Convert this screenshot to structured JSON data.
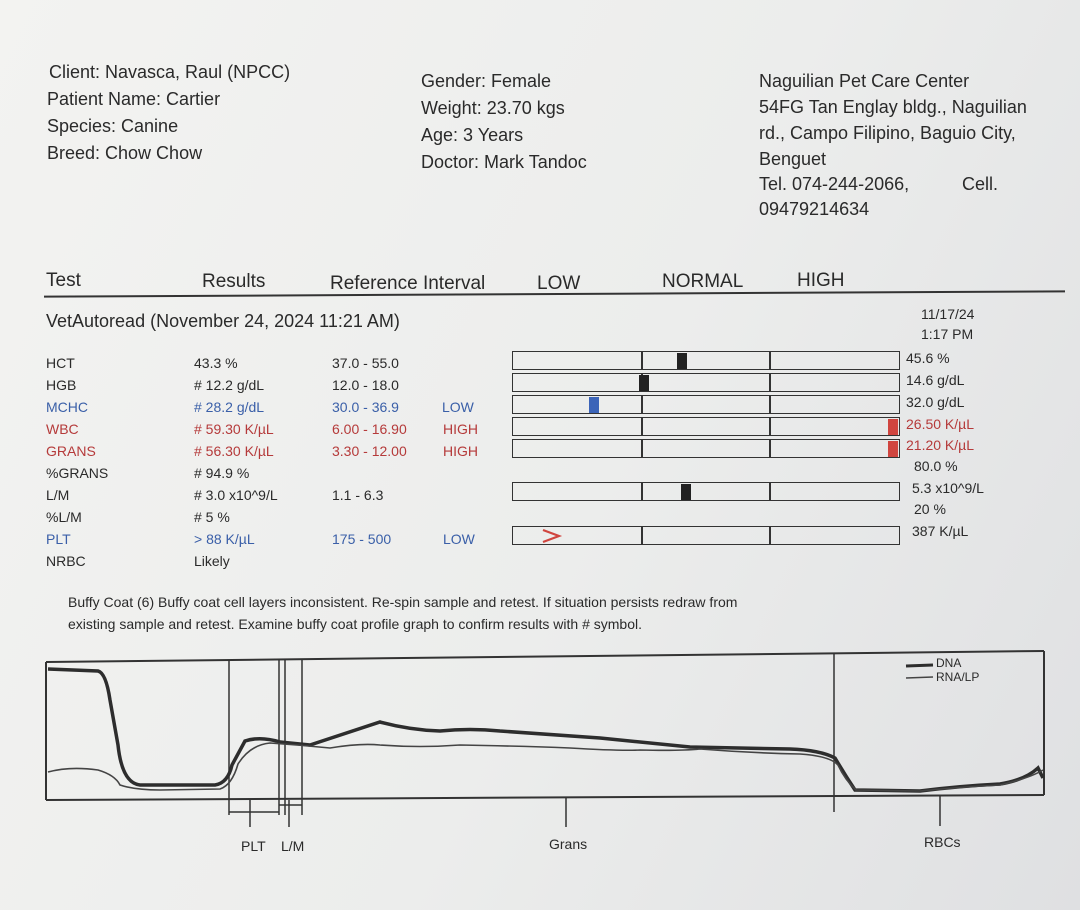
{
  "client": {
    "client": "Client: Navasca, Raul (NPCC)",
    "patient": "Patient Name: Cartier",
    "species": "Species: Canine",
    "breed": "Breed: Chow Chow"
  },
  "patient_info": {
    "gender": "Gender: Female",
    "weight": "Weight: 23.70 kgs",
    "age": "Age: 3 Years",
    "doctor": "Doctor: Mark Tandoc"
  },
  "clinic": {
    "line1": "Naguilian Pet Care Center",
    "line2": "54FG Tan Englay bldg., Naguilian",
    "line3": "rd., Campo Filipino, Baguio City,",
    "line4": "Benguet",
    "line5": "Tel. 074-244-2066,",
    "line5b": "Cell.",
    "line6": "09479214634"
  },
  "columns": {
    "test": "Test",
    "results": "Results",
    "reference": "Reference Interval",
    "low": "LOW",
    "normal": "NORMAL",
    "high": "HIGH"
  },
  "run": {
    "title": "VetAutoread (November 24, 2024 11:21 AM)",
    "date": "11/17/24",
    "time": "1:17 PM"
  },
  "results": [
    {
      "test": "HCT",
      "result": "43.3 %",
      "ref": "37.0 - 55.0",
      "flag": "",
      "prev": "45.6 %",
      "status": "normal"
    },
    {
      "test": "HGB",
      "result": "# 12.2 g/dL",
      "ref": "12.0 - 18.0",
      "flag": "",
      "prev": "14.6 g/dL",
      "status": "normal"
    },
    {
      "test": "MCHC",
      "result": "# 28.2 g/dL",
      "ref": "30.0 - 36.9",
      "flag": "LOW",
      "prev": "32.0 g/dL",
      "status": "low"
    },
    {
      "test": "WBC",
      "result": "# 59.30 K/µL",
      "ref": "6.00 - 16.90",
      "flag": "HIGH",
      "prev": "26.50 K/µL",
      "status": "high"
    },
    {
      "test": "GRANS",
      "result": "# 56.30 K/µL",
      "ref": "3.30 - 12.00",
      "flag": "HIGH",
      "prev": "21.20 K/µL",
      "status": "high"
    },
    {
      "test": "%GRANS",
      "result": "# 94.9 %",
      "ref": "",
      "flag": "",
      "prev": "80.0 %",
      "status": "normal"
    },
    {
      "test": "L/M",
      "result": "# 3.0 x10^9/L",
      "ref": "1.1 - 6.3",
      "flag": "",
      "prev": "5.3 x10^9/L",
      "status": "normal"
    },
    {
      "test": "%L/M",
      "result": "# 5 %",
      "ref": "",
      "flag": "",
      "prev": "20 %",
      "status": "normal"
    },
    {
      "test": "PLT",
      "result": "> 88 K/µL",
      "ref": "175 - 500",
      "flag": "LOW",
      "prev": "387 K/µL",
      "status": "low"
    },
    {
      "test": "NRBC",
      "result": "Likely",
      "ref": "",
      "flag": "",
      "prev": "",
      "status": "normal"
    }
  ],
  "range_bars": [
    {
      "test": "HCT",
      "position": 0.44,
      "color": "#222222"
    },
    {
      "test": "HGB",
      "position": 0.34,
      "color": "#222222"
    },
    {
      "test": "MCHC",
      "position": 0.21,
      "color": "#3b64b8"
    },
    {
      "test": "WBC",
      "position": 0.99,
      "color": "#d0453f"
    },
    {
      "test": "GRANS",
      "position": 0.99,
      "color": "#d0453f"
    },
    {
      "test": "L/M",
      "position": 0.45,
      "color": "#222222"
    },
    {
      "test": "PLT",
      "position": 0.1,
      "color": "#d0453f",
      "shape": "chevron-right"
    }
  ],
  "note": {
    "line1": "Buffy Coat (6)  Buffy coat cell layers inconsistent.  Re-spin sample and retest.  If situation persists redraw from",
    "line2": "existing sample and retest.  Examine buffy coat profile graph to confirm results with # symbol."
  },
  "graph": {
    "legend": [
      "DNA",
      "RNA/LP"
    ],
    "regions": [
      "PLT",
      "L/M",
      "Grans",
      "RBCs"
    ]
  }
}
